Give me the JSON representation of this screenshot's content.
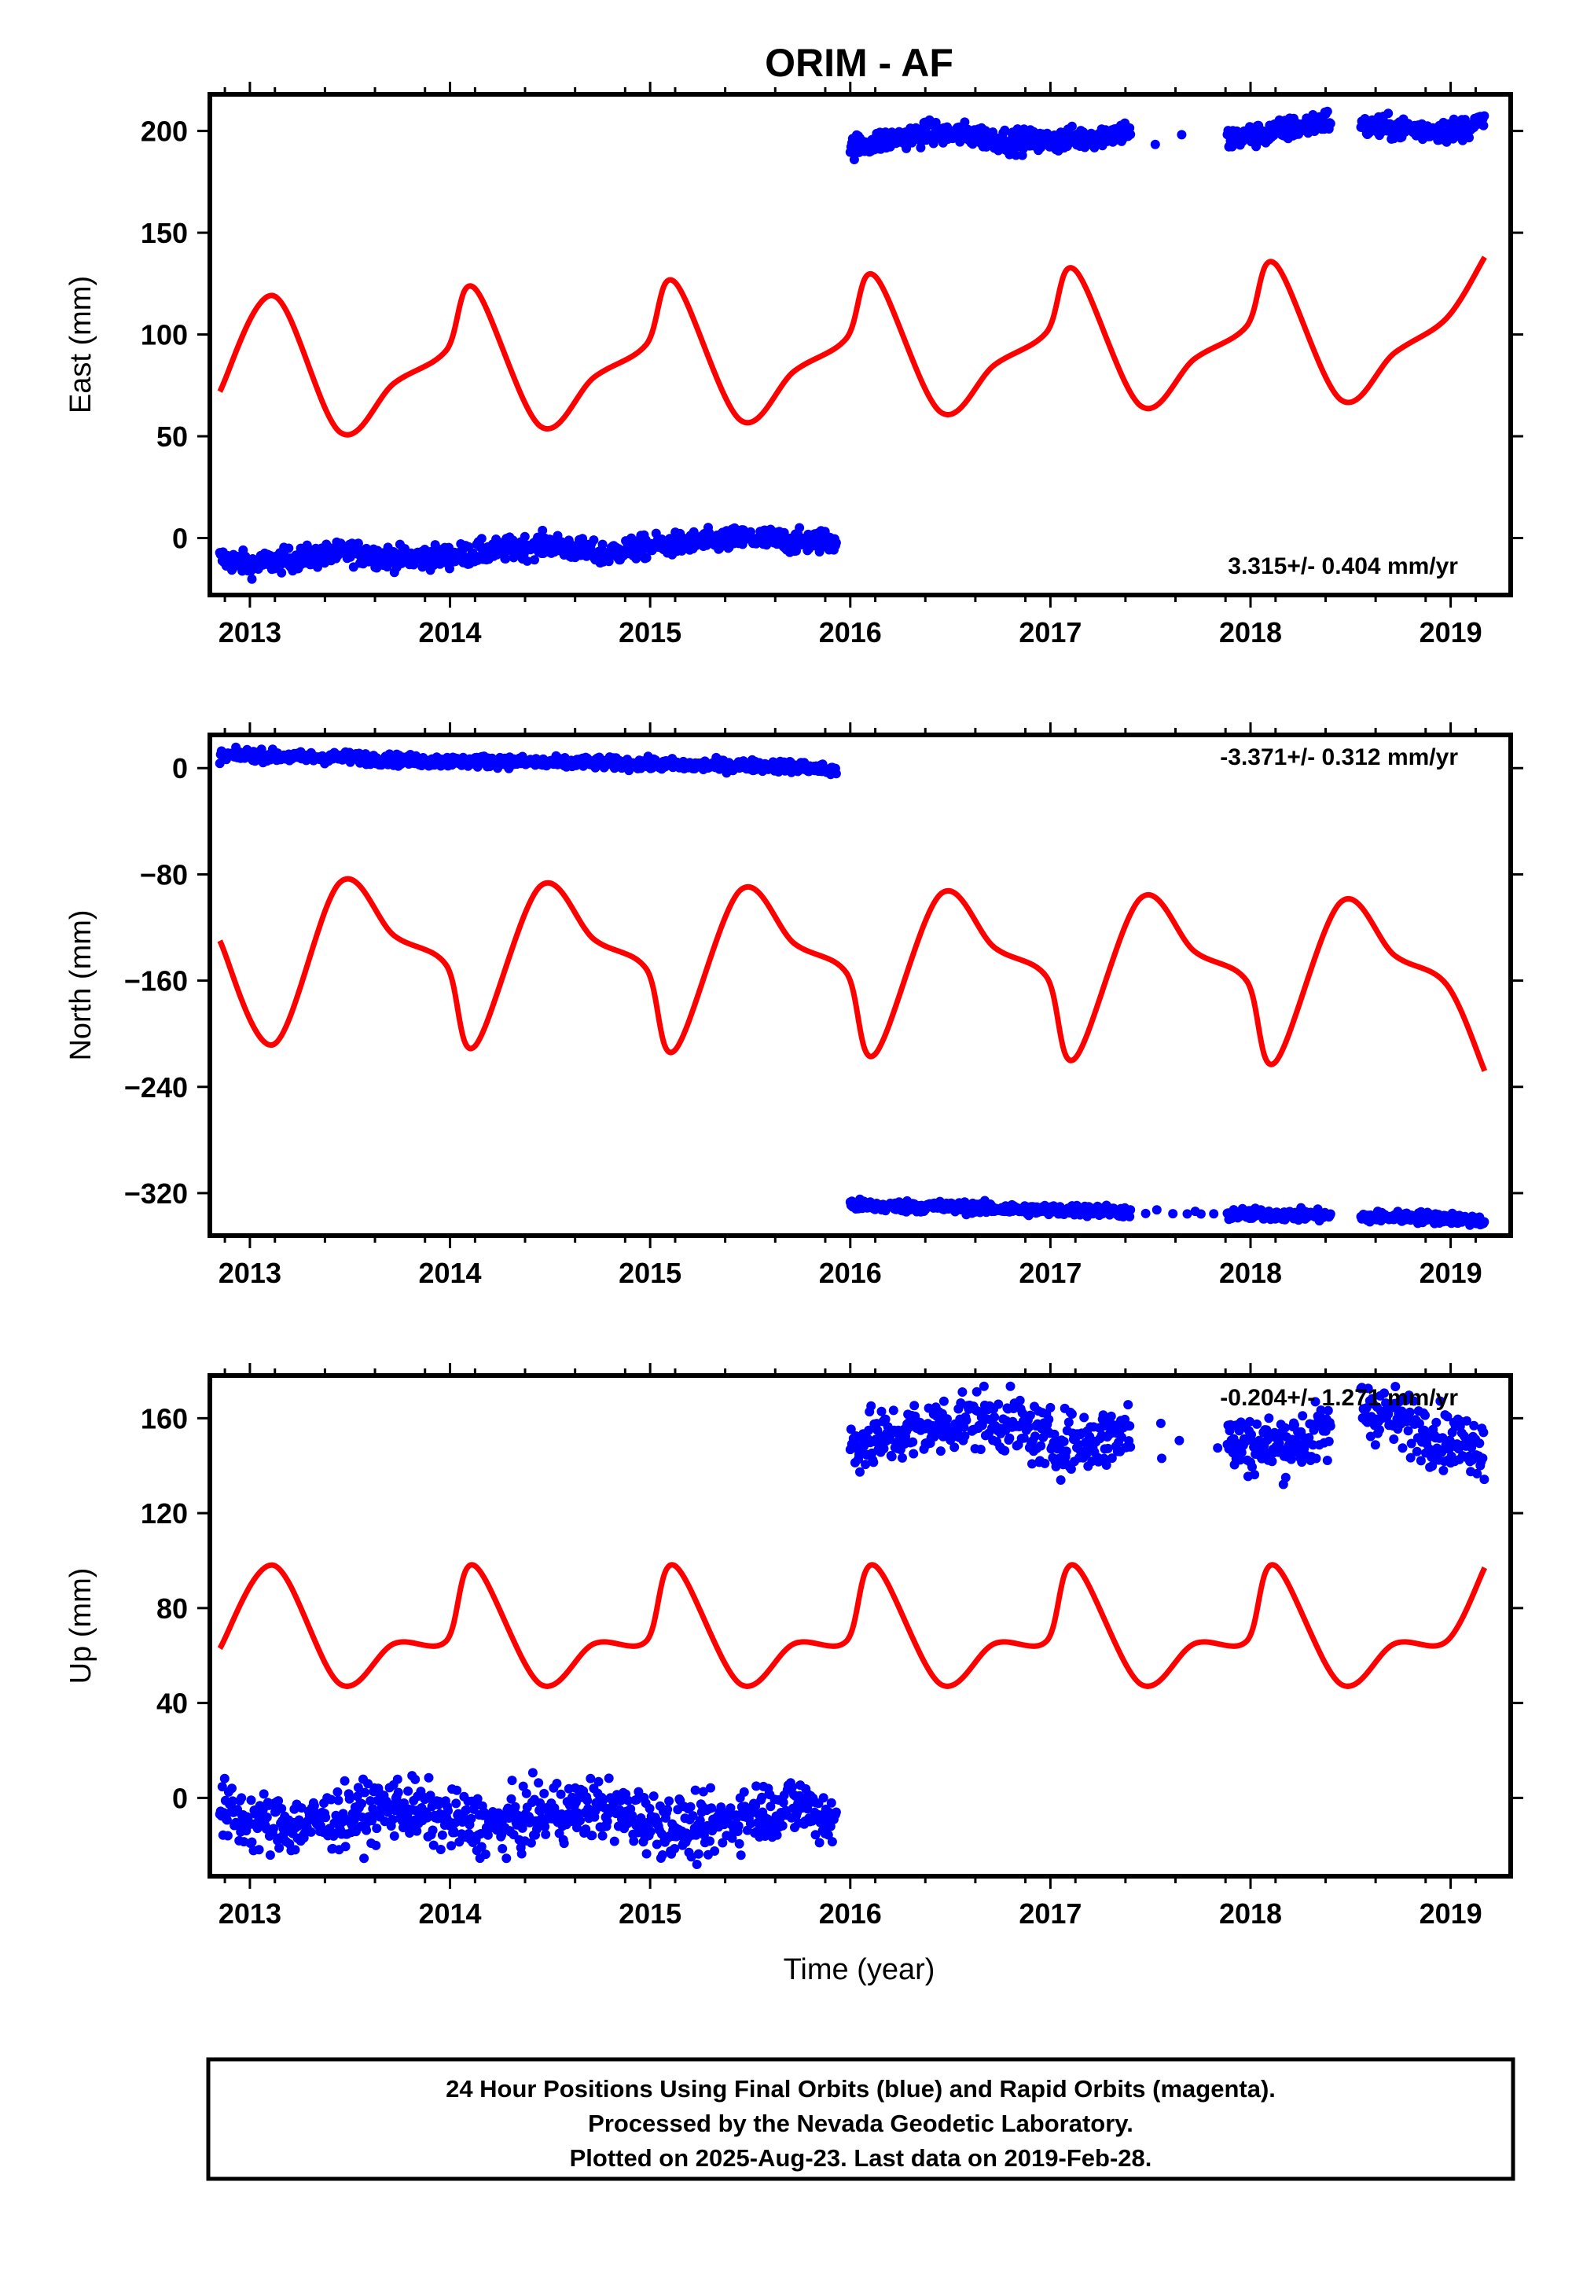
{
  "title": "ORIM - AF",
  "xlabel": "Time (year)",
  "footer": {
    "line1": "24 Hour Positions Using Final Orbits (blue) and Rapid Orbits (magenta).",
    "line2": "Processed by the Nevada Geodetic Laboratory.",
    "line3": "Plotted on 2025-Aug-23. Last data on 2019-Feb-28."
  },
  "colors": {
    "data": "#0000ff",
    "model": "#ff0000",
    "frame": "#000000"
  },
  "chart_data": [
    {
      "type": "scatter",
      "ylabel": "East (mm)",
      "rate": "3.315+/- 0.404 mm/yr",
      "xlim": [
        2012.8,
        2019.3
      ],
      "ylim": [
        -28,
        218
      ],
      "xticks": [
        "2013",
        "2014",
        "2015",
        "2016",
        "2017",
        "2018",
        "2019"
      ],
      "yticks": [
        "0",
        "50",
        "100",
        "150",
        "200"
      ],
      "segments": [
        {
          "x": [
            2012.85,
            2013.0,
            2013.25,
            2013.5,
            2013.75,
            2014.0,
            2014.25,
            2014.5,
            2014.75,
            2015.0,
            2015.25,
            2015.5,
            2015.75,
            2015.93
          ],
          "y": [
            -10,
            -13,
            -10,
            -7,
            -10,
            -9,
            -6,
            -3,
            -8,
            -4,
            -2,
            0,
            -2,
            -1
          ]
        },
        {
          "x": [
            2016.0,
            2016.2,
            2016.4,
            2016.6,
            2016.8,
            2017.0,
            2017.2,
            2017.38,
            2017.9,
            2018.1,
            2018.38,
            2018.55,
            2018.8,
            2019.0,
            2019.17
          ],
          "y": [
            192,
            196,
            199,
            198,
            195,
            195,
            197,
            200,
            196,
            199,
            205,
            202,
            201,
            200,
            204
          ]
        }
      ],
      "model": {
        "x": [
          2012.85,
          2013.12,
          2013.45,
          2013.72,
          2013.98,
          2014.12,
          2014.45,
          2014.72,
          2014.98,
          2015.12,
          2015.45,
          2015.72,
          2015.98,
          2016.12,
          2016.45,
          2016.72,
          2016.98,
          2017.12,
          2017.45,
          2017.72,
          2017.98,
          2018.12,
          2018.45,
          2018.72,
          2018.98,
          2019.17
        ],
        "y": [
          72,
          119,
          52,
          76,
          92,
          123,
          55,
          79,
          95,
          126,
          58,
          82,
          98,
          129,
          62,
          85,
          101,
          132,
          65,
          88,
          104,
          135,
          68,
          91,
          108,
          138
        ]
      }
    },
    {
      "type": "scatter",
      "ylabel": "North (mm)",
      "rate": "-3.371+/- 0.312 mm/yr",
      "xlim": [
        2012.8,
        2019.3
      ],
      "ylim": [
        -352,
        25
      ],
      "xticks": [
        "2013",
        "2014",
        "2015",
        "2016",
        "2017",
        "2018",
        "2019"
      ],
      "yticks": [
        "0",
        "−80",
        "−160",
        "−240",
        "−320"
      ],
      "segments": [
        {
          "x": [
            2012.85,
            2013.0,
            2013.25,
            2013.5,
            2013.75,
            2014.0,
            2014.25,
            2014.5,
            2014.75,
            2015.0,
            2015.25,
            2015.5,
            2015.75,
            2015.93
          ],
          "y": [
            9,
            10,
            8,
            8,
            6,
            5,
            5,
            4,
            4,
            3,
            2,
            2,
            1,
            -2
          ]
        },
        {
          "x": [
            2016.0,
            2016.2,
            2016.4,
            2016.6,
            2016.8,
            2017.0,
            2017.2,
            2017.38,
            2017.9,
            2018.1,
            2018.38,
            2018.55,
            2018.8,
            2019.0,
            2019.17
          ],
          "y": [
            -329,
            -330,
            -330,
            -331,
            -332,
            -333,
            -333,
            -334,
            -336,
            -336,
            -337,
            -338,
            -338,
            -339,
            -341
          ]
        }
      ],
      "model": {
        "x": [
          2012.85,
          2013.12,
          2013.45,
          2013.72,
          2013.98,
          2014.12,
          2014.45,
          2014.72,
          2014.98,
          2015.12,
          2015.45,
          2015.72,
          2015.98,
          2016.12,
          2016.45,
          2016.72,
          2016.98,
          2017.12,
          2017.45,
          2017.72,
          2017.98,
          2018.12,
          2018.45,
          2018.72,
          2018.98,
          2019.17
        ],
        "y": [
          -130,
          -208,
          -86,
          -126,
          -148,
          -210,
          -89,
          -129,
          -151,
          -213,
          -92,
          -132,
          -154,
          -216,
          -95,
          -135,
          -157,
          -219,
          -98,
          -138,
          -160,
          -222,
          -101,
          -141,
          -163,
          -228
        ]
      }
    },
    {
      "type": "scatter",
      "ylabel": "Up (mm)",
      "rate": "-0.204+/- 1.271 mm/yr",
      "xlim": [
        2012.8,
        2019.3
      ],
      "ylim": [
        -33,
        178
      ],
      "xticks": [
        "2013",
        "2014",
        "2015",
        "2016",
        "2017",
        "2018",
        "2019"
      ],
      "yticks": [
        "0",
        "40",
        "80",
        "120",
        "160"
      ],
      "segments": [
        {
          "x": [
            2012.85,
            2013.0,
            2013.25,
            2013.5,
            2013.75,
            2014.0,
            2014.25,
            2014.5,
            2014.75,
            2015.0,
            2015.25,
            2015.5,
            2015.75,
            2015.93
          ],
          "y": [
            -5,
            -10,
            -12,
            -8,
            -3,
            -10,
            -12,
            -6,
            -4,
            -10,
            -14,
            -6,
            -3,
            -10
          ]
        },
        {
          "x": [
            2016.0,
            2016.2,
            2016.4,
            2016.6,
            2016.8,
            2017.0,
            2017.2,
            2017.38,
            2017.9,
            2018.1,
            2018.38,
            2018.55,
            2018.8,
            2019.0,
            2019.17
          ],
          "y": [
            149,
            152,
            156,
            160,
            158,
            150,
            150,
            155,
            150,
            148,
            154,
            165,
            158,
            150,
            149
          ]
        }
      ],
      "model": {
        "x": [
          2012.85,
          2013.12,
          2013.45,
          2013.72,
          2013.98,
          2014.12,
          2014.45,
          2014.72,
          2014.98,
          2015.12,
          2015.45,
          2015.72,
          2015.98,
          2016.12,
          2016.45,
          2016.72,
          2016.98,
          2017.12,
          2017.45,
          2017.72,
          2017.98,
          2018.12,
          2018.45,
          2018.72,
          2018.98,
          2019.17
        ],
        "y": [
          63,
          98,
          48,
          65,
          66,
          98,
          48,
          65,
          66,
          98,
          48,
          65,
          66,
          98,
          48,
          65,
          66,
          98,
          48,
          65,
          66,
          98,
          48,
          65,
          66,
          97
        ]
      }
    }
  ]
}
